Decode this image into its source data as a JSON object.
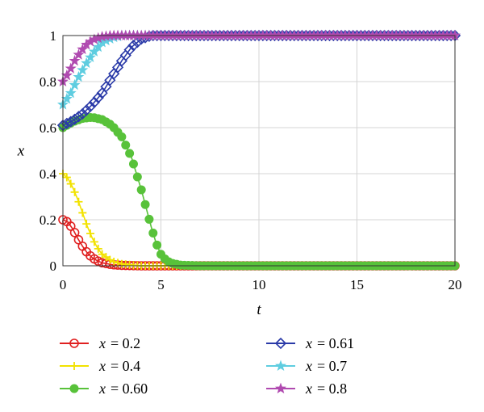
{
  "chart_data": {
    "type": "line",
    "xlabel": "t",
    "ylabel": "x",
    "xlim": [
      0,
      20
    ],
    "ylim": [
      0,
      1
    ],
    "x_ticks": [
      "0",
      "5",
      "10",
      "15",
      "20"
    ],
    "y_ticks": [
      "0",
      "0.2",
      "0.4",
      "0.6",
      "0.8",
      "1"
    ],
    "grid": true,
    "legend_placement": "bottom, two columns",
    "series": [
      {
        "name": "x = 0.2",
        "var": "x",
        "value_label": "= 0.2",
        "color": "#e02020",
        "marker": "circle",
        "points": [
          [
            0,
            0.2
          ],
          [
            0.25,
            0.19
          ],
          [
            0.5,
            0.16
          ],
          [
            0.75,
            0.12
          ],
          [
            1,
            0.085
          ],
          [
            1.25,
            0.055
          ],
          [
            1.5,
            0.035
          ],
          [
            1.75,
            0.022
          ],
          [
            2,
            0.013
          ],
          [
            2.5,
            0.005
          ],
          [
            3,
            0.002
          ],
          [
            4,
            0
          ],
          [
            20,
            0
          ]
        ]
      },
      {
        "name": "x = 0.4",
        "var": "x",
        "value_label": "= 0.4",
        "color": "#f2e200",
        "marker": "plus",
        "points": [
          [
            0,
            0.4
          ],
          [
            0.25,
            0.38
          ],
          [
            0.5,
            0.34
          ],
          [
            0.75,
            0.29
          ],
          [
            1,
            0.23
          ],
          [
            1.25,
            0.17
          ],
          [
            1.5,
            0.12
          ],
          [
            1.75,
            0.08
          ],
          [
            2,
            0.05
          ],
          [
            2.5,
            0.02
          ],
          [
            3,
            0.008
          ],
          [
            3.5,
            0.003
          ],
          [
            4,
            0
          ],
          [
            20,
            0
          ]
        ]
      },
      {
        "name": "x = 0.60",
        "var": "x",
        "value_label": "= 0.60",
        "color": "#58c23a",
        "marker": "dot",
        "points": [
          [
            0,
            0.6
          ],
          [
            0.5,
            0.625
          ],
          [
            1,
            0.64
          ],
          [
            1.5,
            0.645
          ],
          [
            2,
            0.635
          ],
          [
            2.5,
            0.61
          ],
          [
            3,
            0.56
          ],
          [
            3.5,
            0.47
          ],
          [
            4,
            0.33
          ],
          [
            4.25,
            0.25
          ],
          [
            4.5,
            0.17
          ],
          [
            4.75,
            0.1
          ],
          [
            5,
            0.05
          ],
          [
            5.25,
            0.025
          ],
          [
            5.5,
            0.012
          ],
          [
            6,
            0.003
          ],
          [
            7,
            0
          ],
          [
            20,
            0
          ]
        ]
      },
      {
        "name": "x = 0.61",
        "var": "x",
        "value_label": "= 0.61",
        "color": "#2a3aa8",
        "marker": "diamond",
        "points": [
          [
            0,
            0.61
          ],
          [
            0.5,
            0.63
          ],
          [
            1,
            0.66
          ],
          [
            1.5,
            0.7
          ],
          [
            2,
            0.75
          ],
          [
            2.5,
            0.82
          ],
          [
            3,
            0.89
          ],
          [
            3.5,
            0.95
          ],
          [
            4,
            0.985
          ],
          [
            4.5,
            1
          ],
          [
            20,
            1
          ]
        ]
      },
      {
        "name": "x = 0.7",
        "var": "x",
        "value_label": "= 0.7",
        "color": "#5fcde0",
        "marker": "star",
        "points": [
          [
            0,
            0.7
          ],
          [
            0.4,
            0.75
          ],
          [
            0.8,
            0.82
          ],
          [
            1.2,
            0.88
          ],
          [
            1.6,
            0.93
          ],
          [
            2,
            0.97
          ],
          [
            2.5,
            0.99
          ],
          [
            3,
            1
          ],
          [
            20,
            1
          ]
        ]
      },
      {
        "name": "x = 0.8",
        "var": "x",
        "value_label": "= 0.8",
        "color": "#b04ab0",
        "marker": "star",
        "points": [
          [
            0,
            0.8
          ],
          [
            0.3,
            0.84
          ],
          [
            0.6,
            0.89
          ],
          [
            0.9,
            0.93
          ],
          [
            1.2,
            0.96
          ],
          [
            1.5,
            0.98
          ],
          [
            2,
            0.995
          ],
          [
            2.5,
            1
          ],
          [
            20,
            1
          ]
        ]
      }
    ]
  }
}
